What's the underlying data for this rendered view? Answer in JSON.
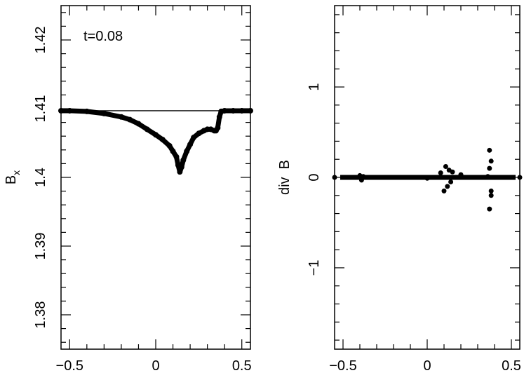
{
  "chart_data": [
    {
      "type": "scatter",
      "title": "",
      "xlabel": "",
      "ylabel": "B",
      "ylabel_subscript": "x",
      "annotation": "t=0.08",
      "xlim": [
        -0.55,
        0.55
      ],
      "ylim": [
        1.375,
        1.425
      ],
      "xticks": [
        -0.5,
        0,
        0.5
      ],
      "xtick_labels": [
        "−0.5",
        "0",
        "0.5"
      ],
      "yticks": [
        1.38,
        1.39,
        1.4,
        1.41,
        1.42
      ],
      "ytick_labels": [
        "1.38",
        "1.39",
        "1.4",
        "1.41",
        "1.42"
      ],
      "reference_line": 1.4097,
      "series": [
        {
          "x": [
            -0.55,
            -0.5,
            -0.4,
            -0.3,
            -0.2,
            -0.15,
            -0.1,
            -0.05,
            0.0,
            0.04,
            0.08,
            0.1,
            0.12,
            0.13,
            0.14,
            0.15,
            0.16,
            0.18,
            0.2,
            0.22,
            0.25,
            0.28,
            0.3,
            0.32,
            0.34,
            0.35,
            0.36,
            0.37,
            0.38,
            0.4,
            0.45,
            0.5,
            0.55
          ],
          "y": [
            1.4097,
            1.4097,
            1.4096,
            1.4093,
            1.4088,
            1.4084,
            1.4078,
            1.407,
            1.4062,
            1.4055,
            1.4046,
            1.4038,
            1.403,
            1.4018,
            1.4008,
            1.4015,
            1.4025,
            1.4038,
            1.4048,
            1.4058,
            1.4064,
            1.4068,
            1.407,
            1.407,
            1.4068,
            1.4068,
            1.4072,
            1.4088,
            1.4096,
            1.4097,
            1.4097,
            1.4097,
            1.4097
          ]
        }
      ]
    },
    {
      "type": "scatter",
      "title": "",
      "xlabel": "",
      "ylabel": "div  B",
      "xlim": [
        -0.55,
        0.55
      ],
      "ylim": [
        -1.9,
        1.9
      ],
      "xticks": [
        -0.5,
        0,
        0.5
      ],
      "xtick_labels": [
        "−0.5",
        "0",
        "0.5"
      ],
      "yticks": [
        -1,
        0,
        1
      ],
      "ytick_labels": [
        "−1",
        "0",
        "1"
      ],
      "series": [
        {
          "x": [
            -0.55,
            -0.4,
            -0.39,
            -0.38,
            -0.2,
            0.0,
            0.08,
            0.1,
            0.11,
            0.12,
            0.13,
            0.14,
            0.15,
            0.2,
            0.3,
            0.36,
            0.37,
            0.37,
            0.37,
            0.38,
            0.38,
            0.38,
            0.4,
            0.55
          ],
          "y": [
            0.0,
            0.02,
            -0.03,
            0.01,
            0.0,
            -0.01,
            0.05,
            -0.15,
            0.12,
            -0.1,
            0.08,
            -0.05,
            0.06,
            0.03,
            0.0,
            0.01,
            0.3,
            -0.35,
            0.1,
            -0.15,
            0.18,
            -0.2,
            0.0,
            0.0
          ]
        }
      ]
    }
  ]
}
